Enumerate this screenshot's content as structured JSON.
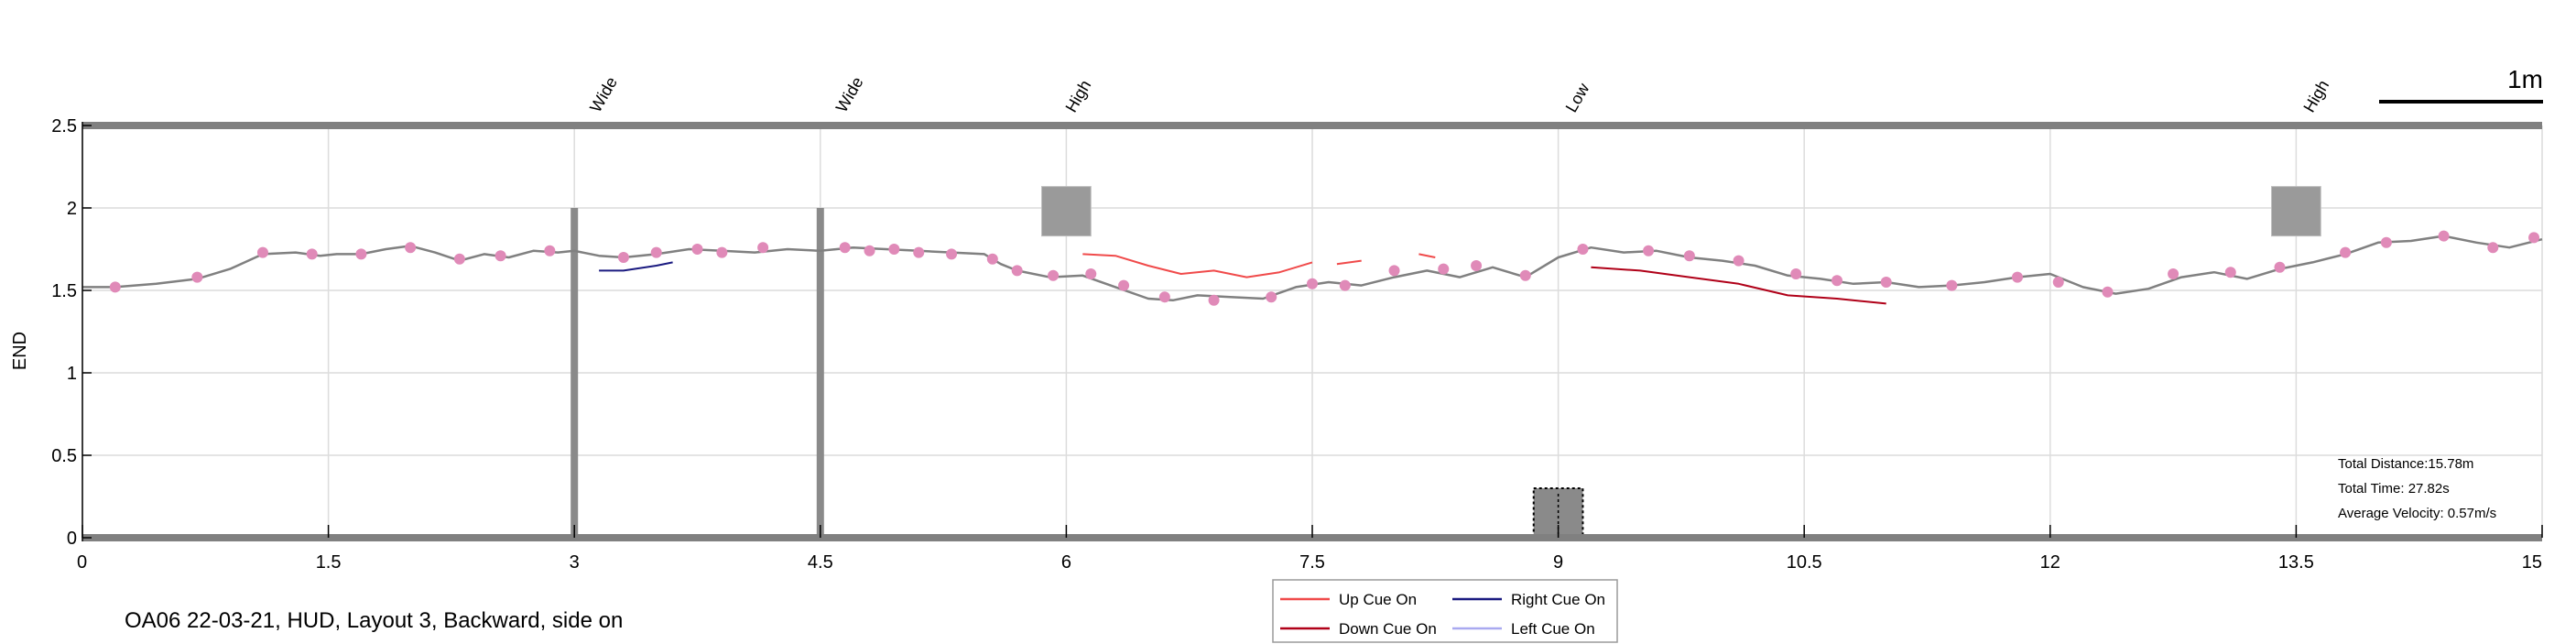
{
  "caption": "OA06 22-03-21, HUD, Layout 3, Backward, side on",
  "stats": {
    "distance": "Total Distance:15.78m",
    "time": "Total Time: 27.82s",
    "velocity": "Average Velocity: 0.57m/s"
  },
  "scale_bar": {
    "label": "1m",
    "length": 1
  },
  "legend": [
    {
      "label": "Up Cue On",
      "color": "#f04a4a"
    },
    {
      "label": "Right Cue On",
      "color": "#1a1a80"
    },
    {
      "label": "Down Cue On",
      "color": "#b00018"
    },
    {
      "label": "Left Cue On",
      "color": "#a9a9f0"
    }
  ],
  "chart_data": {
    "type": "line",
    "title": "",
    "xlabel": "",
    "ylabel": "END",
    "xlim": [
      0,
      15
    ],
    "ylim": [
      0,
      2.5
    ],
    "x_ticks": [
      "0",
      "1.5",
      "3",
      "4.5",
      "6",
      "7.5",
      "9",
      "10.5",
      "12",
      "13.5",
      "15"
    ],
    "y_ticks": [
      "0",
      "0.5",
      "1",
      "1.5",
      "2",
      "2.5"
    ],
    "grid": true,
    "obstacle_labels": [
      {
        "x": 3.15,
        "label": "Wide"
      },
      {
        "x": 4.65,
        "label": "Wide"
      },
      {
        "x": 6.05,
        "label": "High"
      },
      {
        "x": 9.1,
        "label": "Low"
      },
      {
        "x": 13.6,
        "label": "High"
      }
    ],
    "obstacles": [
      {
        "kind": "wide",
        "x": 3.0,
        "y0": 0,
        "y1": 2.0
      },
      {
        "kind": "wide",
        "x": 4.5,
        "y0": 0,
        "y1": 2.0
      },
      {
        "kind": "high",
        "x0": 5.85,
        "x1": 6.15,
        "y0": 1.83,
        "y1": 2.13
      },
      {
        "kind": "low",
        "x0": 8.85,
        "x1": 9.15,
        "y0": 0,
        "y1": 0.3
      },
      {
        "kind": "high",
        "x0": 13.35,
        "x1": 13.65,
        "y0": 1.83,
        "y1": 2.13
      }
    ],
    "series": [
      {
        "role": "trajectory",
        "color": "#808080",
        "x": [
          0,
          0.2,
          0.45,
          0.7,
          0.9,
          1.1,
          1.3,
          1.45,
          1.55,
          1.7,
          1.85,
          2.0,
          2.15,
          2.3,
          2.45,
          2.6,
          2.75,
          2.9,
          3.0,
          3.15,
          3.3,
          3.5,
          3.7,
          3.9,
          4.1,
          4.3,
          4.5,
          4.7,
          4.9,
          5.1,
          5.3,
          5.5,
          5.6,
          5.7,
          5.9,
          6.1,
          6.3,
          6.5,
          6.65,
          6.8,
          7.0,
          7.2,
          7.4,
          7.6,
          7.8,
          8.0,
          8.2,
          8.4,
          8.6,
          8.8,
          9.0,
          9.2,
          9.4,
          9.6,
          9.8,
          10.0,
          10.2,
          10.4,
          10.6,
          10.8,
          11.0,
          11.2,
          11.4,
          11.6,
          11.8,
          12.0,
          12.2,
          12.4,
          12.6,
          12.8,
          13.0,
          13.2,
          13.4,
          13.6,
          13.8,
          14.0,
          14.2,
          14.4,
          14.6,
          14.8,
          15.0
        ],
        "y": [
          1.52,
          1.52,
          1.54,
          1.57,
          1.63,
          1.72,
          1.73,
          1.71,
          1.72,
          1.72,
          1.75,
          1.77,
          1.73,
          1.68,
          1.72,
          1.7,
          1.74,
          1.73,
          1.74,
          1.71,
          1.7,
          1.72,
          1.75,
          1.74,
          1.73,
          1.75,
          1.74,
          1.76,
          1.75,
          1.74,
          1.73,
          1.72,
          1.66,
          1.62,
          1.58,
          1.59,
          1.52,
          1.45,
          1.44,
          1.47,
          1.46,
          1.45,
          1.52,
          1.55,
          1.53,
          1.58,
          1.62,
          1.58,
          1.64,
          1.58,
          1.7,
          1.76,
          1.73,
          1.74,
          1.7,
          1.68,
          1.65,
          1.59,
          1.57,
          1.54,
          1.55,
          1.52,
          1.53,
          1.55,
          1.58,
          1.6,
          1.52,
          1.48,
          1.51,
          1.58,
          1.61,
          1.57,
          1.63,
          1.67,
          1.72,
          1.79,
          1.8,
          1.83,
          1.79,
          1.76,
          1.81
        ]
      },
      {
        "role": "up-cue",
        "color": "#f04a4a",
        "x": [
          6.1,
          6.3,
          6.5,
          6.7,
          6.9,
          7.1,
          7.3,
          7.5
        ],
        "y": [
          1.72,
          1.71,
          1.65,
          1.6,
          1.62,
          1.58,
          1.61,
          1.67
        ]
      },
      {
        "role": "up-cue",
        "color": "#f04a4a",
        "x": [
          7.65,
          7.8
        ],
        "y": [
          1.66,
          1.68
        ]
      },
      {
        "role": "up-cue",
        "color": "#f04a4a",
        "x": [
          8.15,
          8.25
        ],
        "y": [
          1.72,
          1.7
        ]
      },
      {
        "role": "right-cue",
        "color": "#1a1a80",
        "x": [
          3.15,
          3.3,
          3.5,
          3.6
        ],
        "y": [
          1.62,
          1.62,
          1.65,
          1.67
        ]
      },
      {
        "role": "down-cue",
        "color": "#b00018",
        "x": [
          9.2,
          9.5,
          9.8,
          10.1,
          10.4,
          10.7,
          11.0
        ],
        "y": [
          1.64,
          1.62,
          1.58,
          1.54,
          1.47,
          1.45,
          1.42
        ]
      }
    ],
    "markers": {
      "color": "#e08ab8",
      "x": [
        0.2,
        0.7,
        1.1,
        1.4,
        1.7,
        2.0,
        2.3,
        2.55,
        2.85,
        3.3,
        3.5,
        3.75,
        3.9,
        4.15,
        4.65,
        4.8,
        4.95,
        5.1,
        5.3,
        5.55,
        5.7,
        5.92,
        6.15,
        6.35,
        6.6,
        6.9,
        7.25,
        7.5,
        7.7,
        8.0,
        8.3,
        8.5,
        8.8,
        9.15,
        9.55,
        9.8,
        10.1,
        10.45,
        10.7,
        11.0,
        11.4,
        11.8,
        12.05,
        12.35,
        12.75,
        13.1,
        13.4,
        13.8,
        14.05,
        14.4,
        14.7,
        14.95
      ],
      "y": [
        1.52,
        1.58,
        1.73,
        1.72,
        1.72,
        1.76,
        1.69,
        1.71,
        1.74,
        1.7,
        1.73,
        1.75,
        1.73,
        1.76,
        1.76,
        1.74,
        1.75,
        1.73,
        1.72,
        1.69,
        1.62,
        1.59,
        1.6,
        1.53,
        1.46,
        1.44,
        1.46,
        1.54,
        1.53,
        1.62,
        1.63,
        1.65,
        1.59,
        1.75,
        1.74,
        1.71,
        1.68,
        1.6,
        1.56,
        1.55,
        1.53,
        1.58,
        1.55,
        1.49,
        1.6,
        1.61,
        1.64,
        1.73,
        1.79,
        1.83,
        1.76,
        1.82
      ]
    }
  }
}
